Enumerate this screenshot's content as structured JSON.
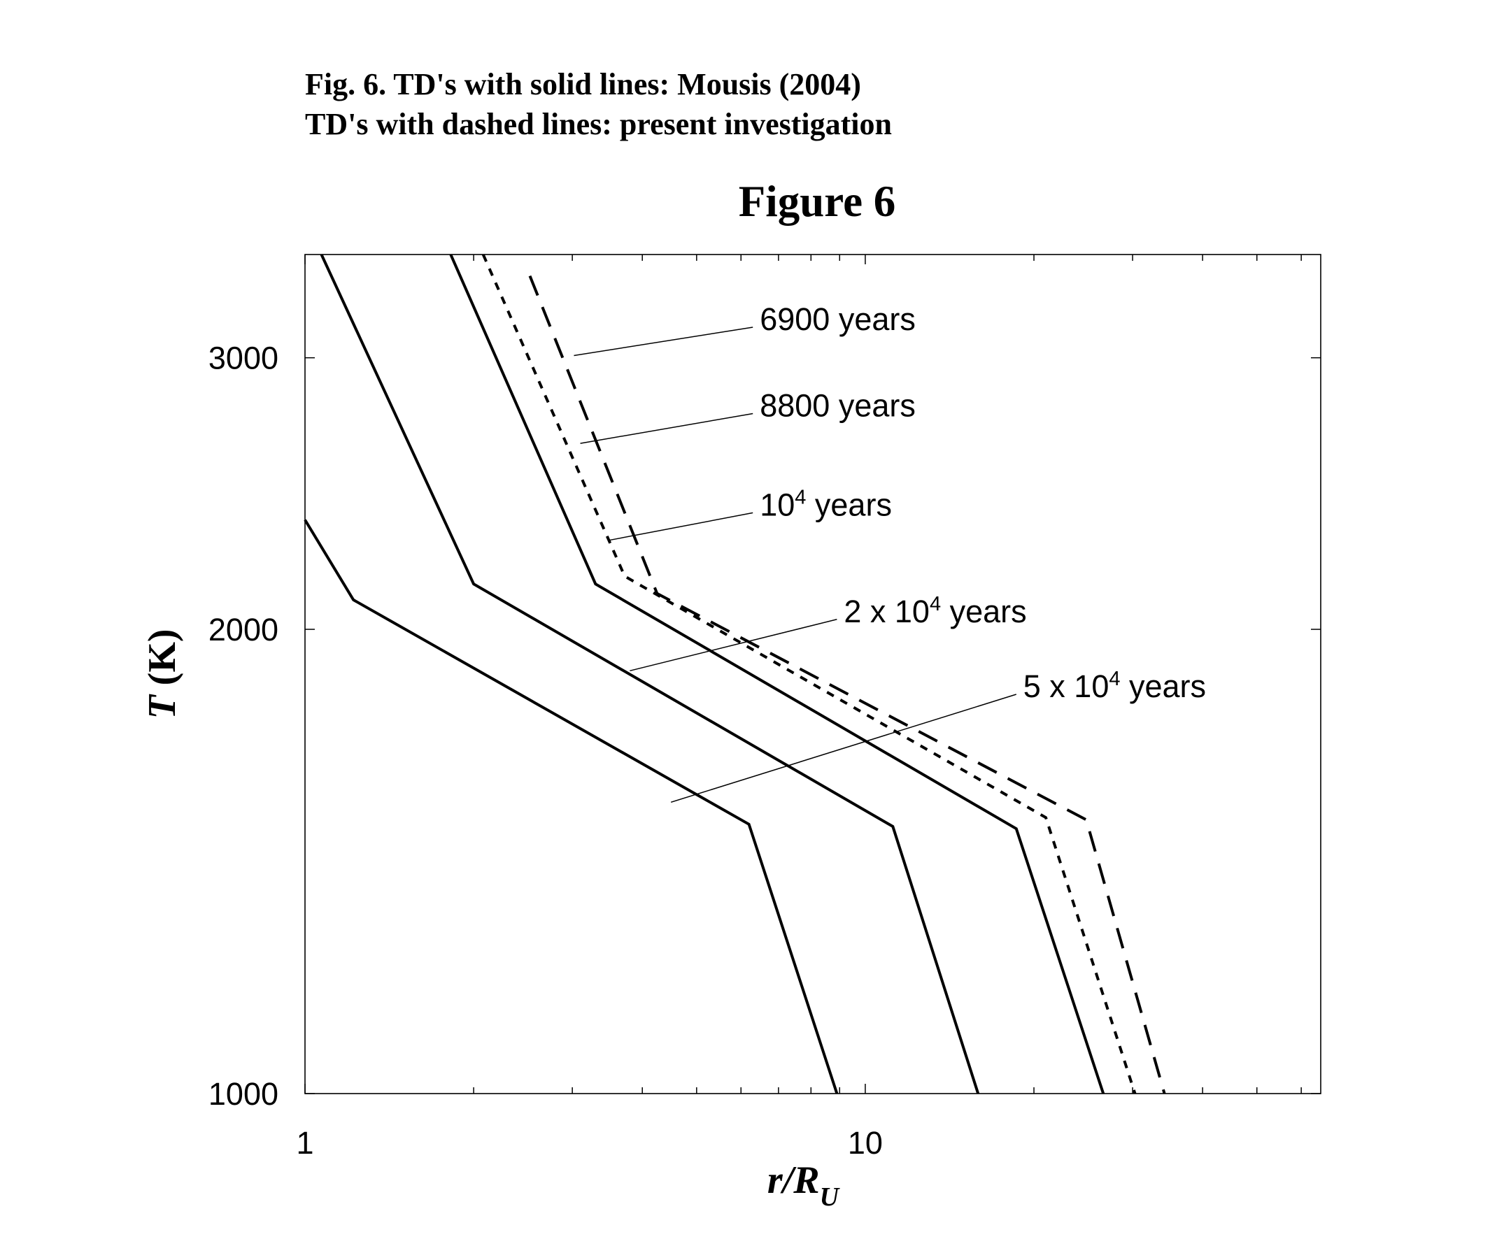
{
  "caption": {
    "line1": "Fig. 6. TD's with solid lines: Mousis (2004)",
    "line2": "TD's with dashed lines: present investigation"
  },
  "chart_data": {
    "type": "line",
    "title": "Figure 6",
    "xlabel": "r/R_U",
    "xlabel_main": "r/R",
    "xlabel_sub": "U",
    "ylabel": "T (K)",
    "ylabel_italic": "T",
    "ylabel_rest": " (K)",
    "xscale": "log",
    "yscale": "log",
    "xlim": [
      1,
      65
    ],
    "ylim": [
      1000,
      3500
    ],
    "grid": false,
    "x_tick_labels": [
      {
        "value": 1,
        "label": "1"
      },
      {
        "value": 10,
        "label": "10"
      }
    ],
    "y_tick_labels": [
      {
        "value": 1000,
        "label": "1000"
      },
      {
        "value": 2000,
        "label": "2000"
      },
      {
        "value": 3000,
        "label": "3000"
      }
    ],
    "series": [
      {
        "style": "solid",
        "points": [
          [
            1.0,
            2355
          ],
          [
            1.22,
            2090
          ],
          [
            6.2,
            1495
          ],
          [
            8.9,
            1000
          ]
        ]
      },
      {
        "style": "solid",
        "points": [
          [
            1.07,
            3500
          ],
          [
            2.0,
            2140
          ],
          [
            11.2,
            1490
          ],
          [
            15.9,
            1000
          ]
        ]
      },
      {
        "style": "solid",
        "points": [
          [
            1.82,
            3500
          ],
          [
            3.3,
            2140
          ],
          [
            18.6,
            1485
          ],
          [
            26.6,
            1000
          ]
        ]
      },
      {
        "style": "dotted",
        "points": [
          [
            2.08,
            3500
          ],
          [
            3.72,
            2165
          ],
          [
            21.0,
            1510
          ],
          [
            30.3,
            1000
          ]
        ]
      },
      {
        "style": "dashed",
        "points": [
          [
            2.52,
            3390
          ],
          [
            4.25,
            2110
          ],
          [
            24.8,
            1505
          ],
          [
            34.2,
            1000
          ]
        ]
      }
    ],
    "annotations": [
      {
        "main": "6900 years",
        "sup": "",
        "suffix": "",
        "line_from": [
          3.02,
          3010
        ],
        "line_to": [
          6.3,
          3140
        ]
      },
      {
        "main": "8800 years",
        "sup": "",
        "suffix": "",
        "line_from": [
          3.1,
          2640
        ],
        "line_to": [
          6.3,
          2760
        ]
      },
      {
        "main": "10",
        "sup": "4",
        "suffix": " years",
        "line_from": [
          3.5,
          2285
        ],
        "line_to": [
          6.3,
          2380
        ]
      },
      {
        "main": "2 x 10",
        "sup": "4",
        "suffix": " years",
        "line_from": [
          3.8,
          1880
        ],
        "line_to": [
          8.9,
          2030
        ]
      },
      {
        "main": "5 x 10",
        "sup": "4",
        "suffix": " years",
        "line_from": [
          4.5,
          1545
        ],
        "line_to": [
          18.6,
          1815
        ]
      }
    ]
  }
}
